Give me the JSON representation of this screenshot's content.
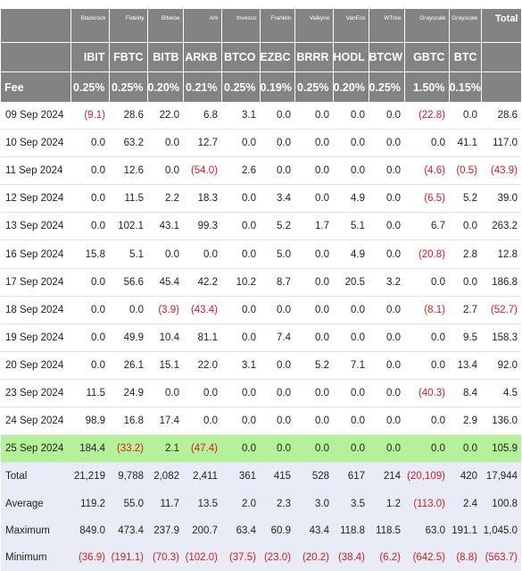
{
  "issuers": [
    "Blackrock",
    "Fidelity",
    "Bitwise",
    "Ark",
    "Invesco",
    "Franklin",
    "Valkyrie",
    "VanEck",
    "WTree",
    "Grayscale",
    "Grayscale"
  ],
  "total_header": "Total",
  "tickers": [
    "IBIT",
    "FBTC",
    "BITB",
    "ARKB",
    "BTCO",
    "EZBC",
    "BRRR",
    "HODL",
    "BTCW",
    "GBTC",
    "BTC"
  ],
  "fee_label": "Fee",
  "fees": [
    "0.25%",
    "0.25%",
    "0.20%",
    "0.21%",
    "0.25%",
    "0.19%",
    "0.25%",
    "0.20%",
    "0.25%",
    "1.50%",
    "0.15%"
  ],
  "rows": [
    {
      "date": "09 Sep 2024",
      "values": [
        "(9.1)",
        "28.6",
        "22.0",
        "6.8",
        "3.1",
        "0.0",
        "0.0",
        "0.0",
        "0.0",
        "(22.8)",
        "0.0",
        "28.6"
      ]
    },
    {
      "date": "10 Sep 2024",
      "values": [
        "0.0",
        "63.2",
        "0.0",
        "12.7",
        "0.0",
        "0.0",
        "0.0",
        "0.0",
        "0.0",
        "0.0",
        "41.1",
        "117.0"
      ]
    },
    {
      "date": "11 Sep 2024",
      "values": [
        "0.0",
        "12.6",
        "0.0",
        "(54.0)",
        "2.6",
        "0.0",
        "0.0",
        "0.0",
        "0.0",
        "(4.6)",
        "(0.5)",
        "(43.9)"
      ]
    },
    {
      "date": "12 Sep 2024",
      "values": [
        "0.0",
        "11.5",
        "2.2",
        "18.3",
        "0.0",
        "3.4",
        "0.0",
        "4.9",
        "0.0",
        "(6.5)",
        "5.2",
        "39.0"
      ]
    },
    {
      "date": "13 Sep 2024",
      "values": [
        "0.0",
        "102.1",
        "43.1",
        "99.3",
        "0.0",
        "5.2",
        "1.7",
        "5.1",
        "0.0",
        "6.7",
        "0.0",
        "263.2"
      ]
    },
    {
      "date": "16 Sep 2024",
      "values": [
        "15.8",
        "5.1",
        "0.0",
        "0.0",
        "0.0",
        "5.0",
        "0.0",
        "4.9",
        "0.0",
        "(20.8)",
        "2.8",
        "12.8"
      ]
    },
    {
      "date": "17 Sep 2024",
      "values": [
        "0.0",
        "56.6",
        "45.4",
        "42.2",
        "10.2",
        "8.7",
        "0.0",
        "20.5",
        "3.2",
        "0.0",
        "0.0",
        "186.8"
      ]
    },
    {
      "date": "18 Sep 2024",
      "values": [
        "0.0",
        "0.0",
        "(3.9)",
        "(43.4)",
        "0.0",
        "0.0",
        "0.0",
        "0.0",
        "0.0",
        "(8.1)",
        "2.7",
        "(52.7)"
      ]
    },
    {
      "date": "19 Sep 2024",
      "values": [
        "0.0",
        "49.9",
        "10.4",
        "81.1",
        "0.0",
        "7.4",
        "0.0",
        "0.0",
        "0.0",
        "0.0",
        "9.5",
        "158.3"
      ]
    },
    {
      "date": "20 Sep 2024",
      "values": [
        "0.0",
        "26.1",
        "15.1",
        "22.0",
        "3.1",
        "0.0",
        "5.2",
        "7.1",
        "0.0",
        "0.0",
        "13.4",
        "92.0"
      ]
    },
    {
      "date": "23 Sep 2024",
      "values": [
        "11.5",
        "24.9",
        "0.0",
        "0.0",
        "0.0",
        "0.0",
        "0.0",
        "0.0",
        "0.0",
        "(40.3)",
        "8.4",
        "4.5"
      ]
    },
    {
      "date": "24 Sep 2024",
      "values": [
        "98.9",
        "16.8",
        "17.4",
        "0.0",
        "0.0",
        "0.0",
        "0.0",
        "0.0",
        "0.0",
        "0.0",
        "2.9",
        "136.0"
      ]
    },
    {
      "date": "25 Sep 2024",
      "values": [
        "184.4",
        "(33.2)",
        "2.1",
        "(47.4)",
        "0.0",
        "0.0",
        "0.0",
        "0.0",
        "0.0",
        "0.0",
        "0.0",
        "105.9"
      ],
      "highlight": true
    }
  ],
  "stats": [
    {
      "label": "Total",
      "values": [
        "21,219",
        "9,788",
        "2,082",
        "2,411",
        "361",
        "415",
        "528",
        "617",
        "214",
        "(20,109)",
        "420",
        "17,944"
      ]
    },
    {
      "label": "Average",
      "values": [
        "119.2",
        "55.0",
        "11.7",
        "13.5",
        "2.0",
        "2.3",
        "3.0",
        "3.5",
        "1.2",
        "(113.0)",
        "2.4",
        "100.8"
      ]
    },
    {
      "label": "Maximum",
      "values": [
        "849.0",
        "473.4",
        "237.9",
        "200.7",
        "63.4",
        "60.9",
        "43.4",
        "118.8",
        "118.5",
        "63.0",
        "191.1",
        "1,045.0"
      ]
    },
    {
      "label": "Minimum",
      "values": [
        "(36.9)",
        "(191.1)",
        "(70.3)",
        "(102.0)",
        "(37.5)",
        "(23.0)",
        "(20.2)",
        "(38.4)",
        "(6.2)",
        "(642.5)",
        "(8.8)",
        "(563.7)"
      ]
    }
  ],
  "colors": {
    "header_bg": "#838383",
    "highlight_row": "#b4f19a",
    "stat_bg": "#e9ecf7",
    "negative": "#d21e1e"
  }
}
